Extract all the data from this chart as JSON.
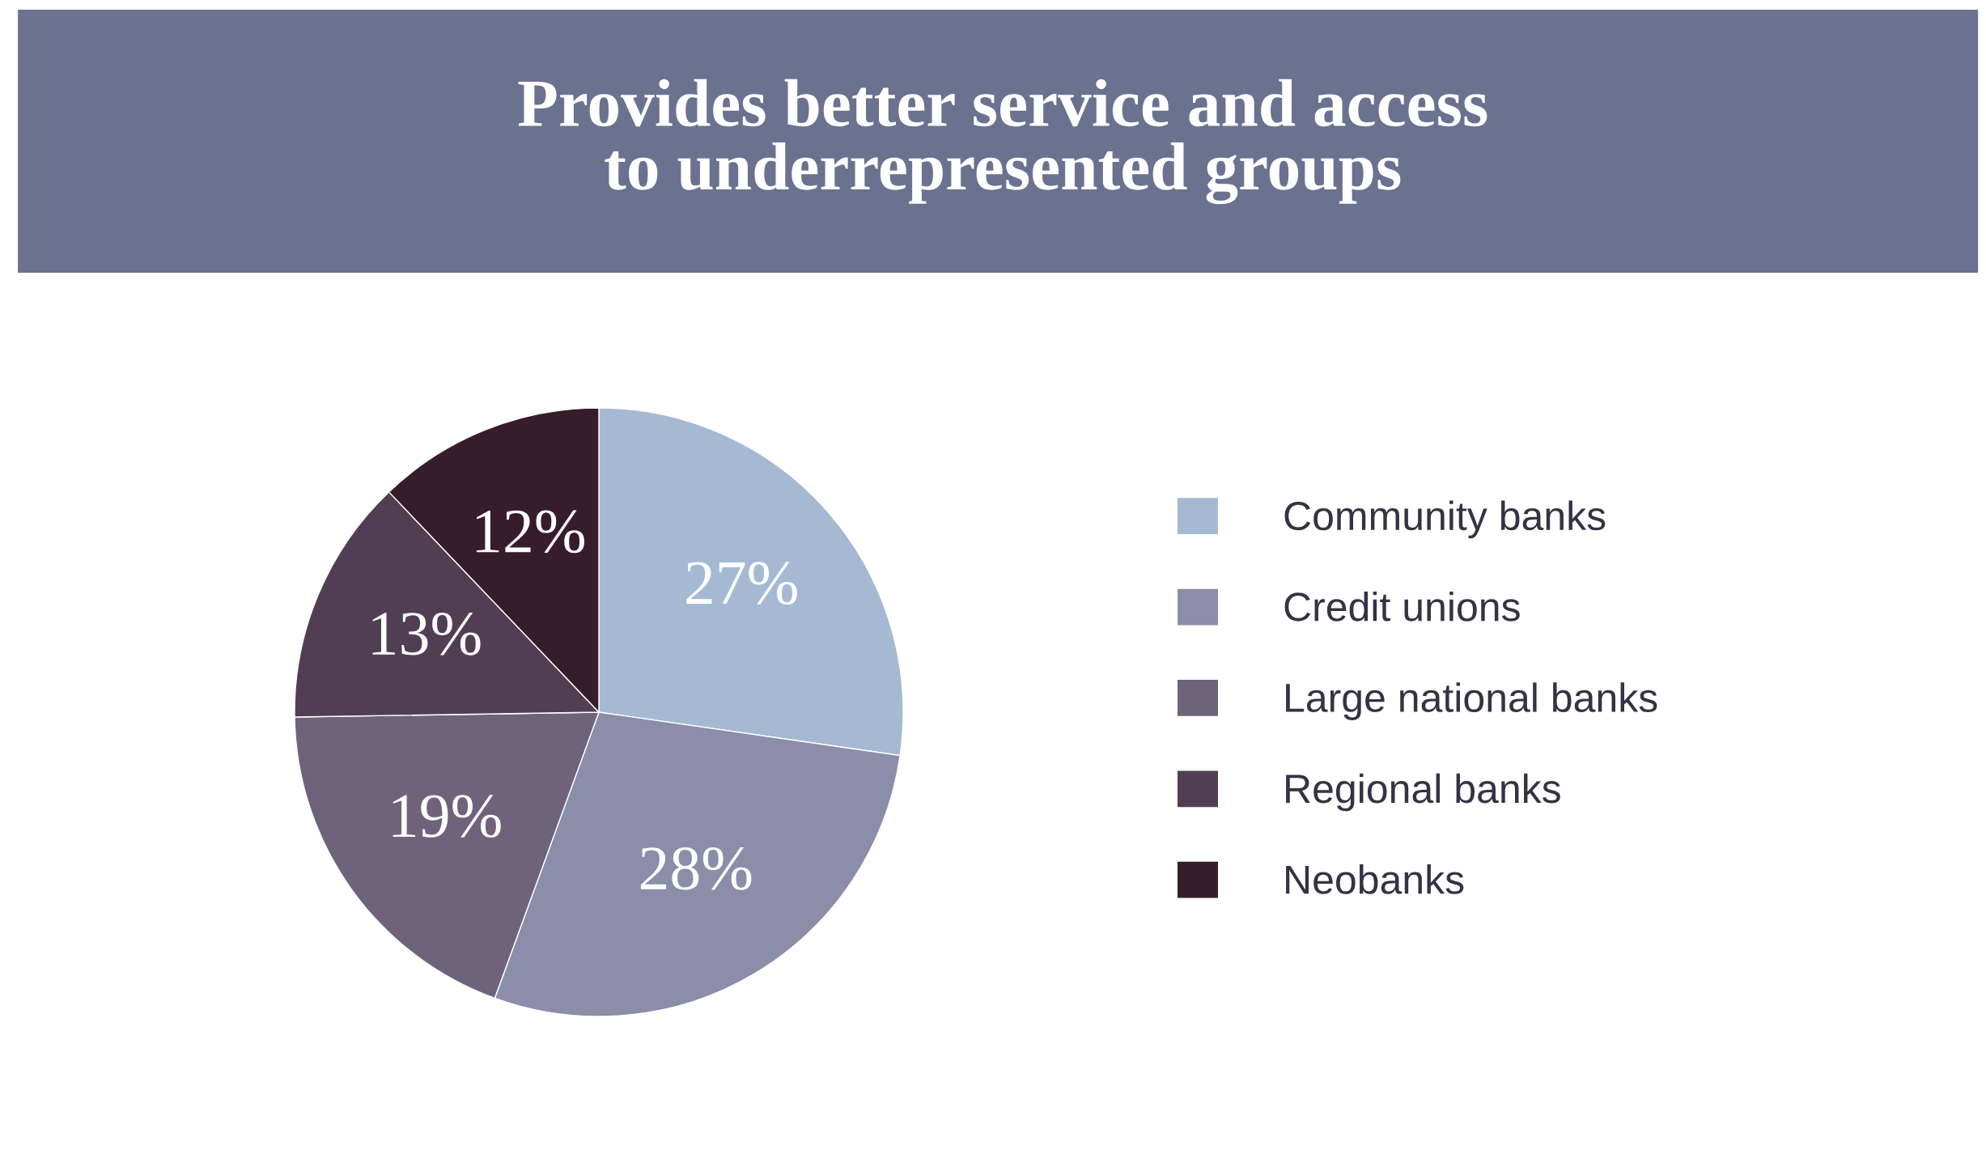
{
  "chart_data": {
    "type": "pie",
    "title": "Provides better service and access\nto underrepresented groups",
    "categories": [
      "Community banks",
      "Credit unions",
      "Large national banks",
      "Regional banks",
      "Neobanks"
    ],
    "values": [
      27,
      28,
      19,
      13,
      12
    ],
    "colors": [
      "#a6b9d3",
      "#8a8ea9",
      "#6e637b",
      "#523e52",
      "#361d29"
    ],
    "value_labels": [
      "27%",
      "28%",
      "19%",
      "13%",
      "12%"
    ],
    "legend": "right"
  }
}
